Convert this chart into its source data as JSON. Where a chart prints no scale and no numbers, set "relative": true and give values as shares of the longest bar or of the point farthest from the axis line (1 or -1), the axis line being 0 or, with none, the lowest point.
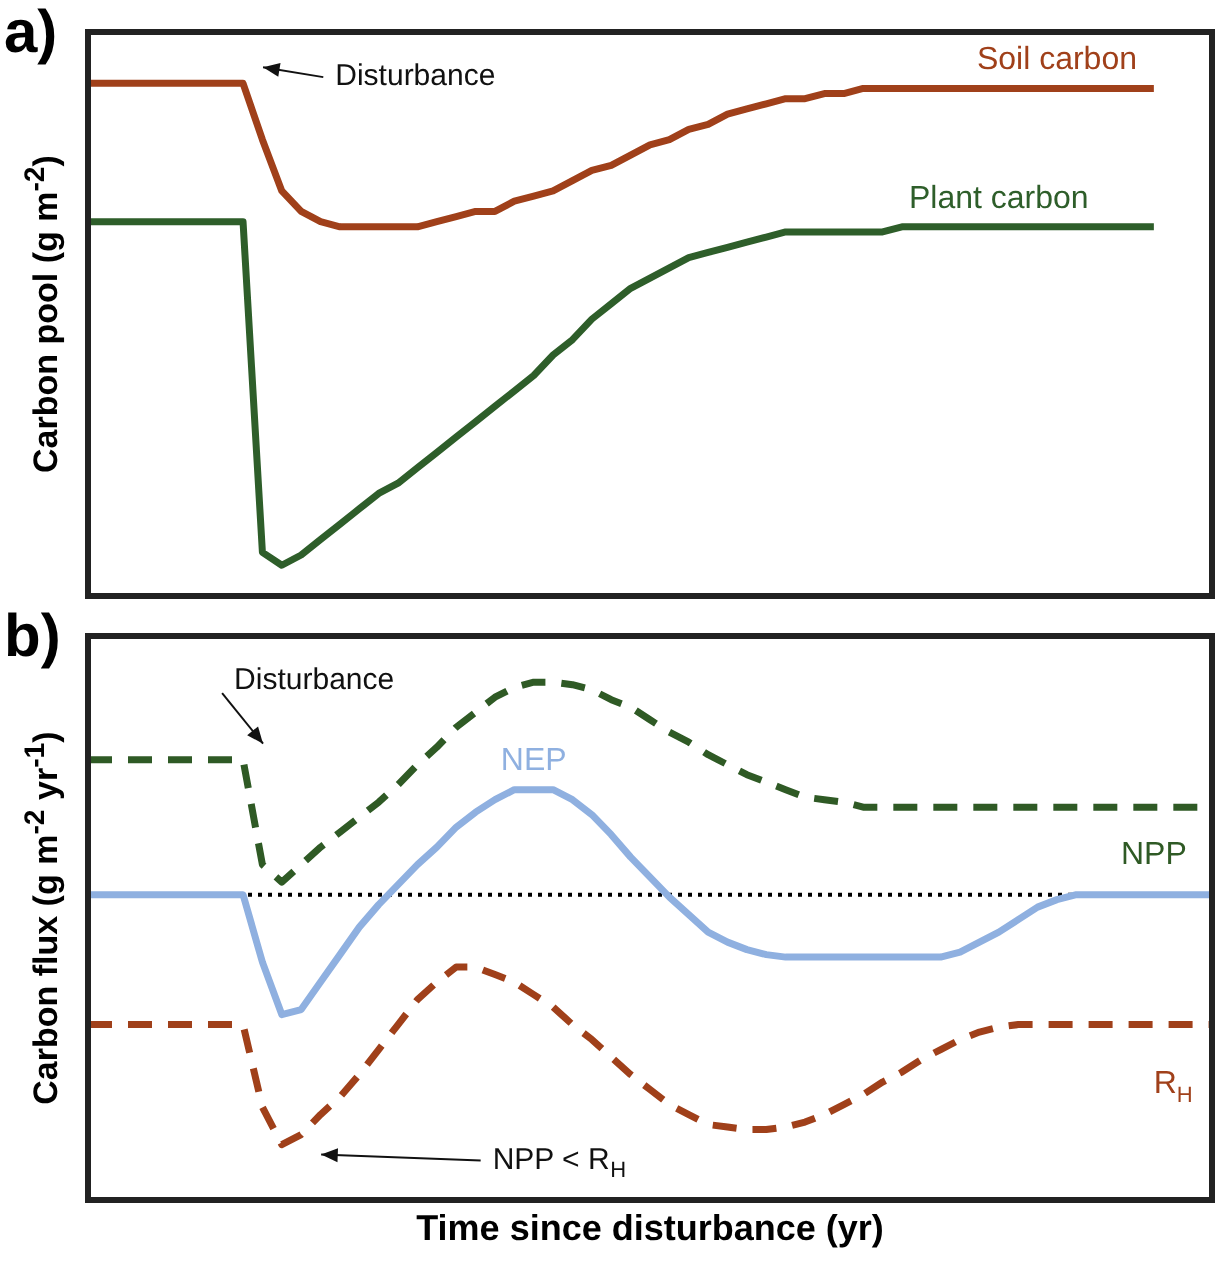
{
  "chart_data": [
    {
      "type": "line",
      "title": "a)",
      "ylabel": "Carbon pool (g m$^{-2}$)",
      "relative": true,
      "legend": false,
      "annotations": [
        "Disturbance"
      ],
      "categories": [
        null,
        null,
        null,
        null,
        null,
        null,
        null,
        null,
        null,
        null,
        null,
        null,
        null,
        null,
        null,
        null,
        null,
        null,
        null,
        null,
        null,
        null,
        null,
        null,
        null,
        null,
        null,
        null,
        null,
        null,
        null,
        null,
        null,
        null,
        null,
        null,
        null,
        null,
        null,
        null,
        null,
        null,
        null,
        null,
        null,
        null,
        null,
        null,
        null,
        null,
        null,
        null,
        null,
        null,
        null,
        null,
        null,
        null,
        null
      ],
      "series": [
        {
          "name": "Soil carbon",
          "color": "#a0401a",
          "line_style": "solid",
          "values": [
            1,
            1,
            1,
            1,
            1,
            1,
            1,
            1,
            1,
            0.89,
            0.79,
            0.75,
            0.73,
            0.72,
            0.72,
            0.72,
            0.72,
            0.72,
            0.73,
            0.74,
            0.75,
            0.75,
            0.77,
            0.78,
            0.79,
            0.81,
            0.83,
            0.84,
            0.86,
            0.88,
            0.89,
            0.91,
            0.92,
            0.94,
            0.95,
            0.96,
            0.97,
            0.97,
            0.98,
            0.98,
            0.99,
            0.99,
            0.99,
            0.99,
            0.99,
            0.99,
            0.99,
            0.99,
            0.99,
            0.99,
            0.99,
            0.99,
            0.99,
            0.99,
            0.99,
            0.99,
            null,
            null,
            null
          ]
        },
        {
          "name": "Plant carbon",
          "color": "#2e5e2a",
          "line_style": "solid",
          "values": [
            0.73,
            0.73,
            0.73,
            0.73,
            0.73,
            0.73,
            0.73,
            0.73,
            0.73,
            0.085,
            0.06,
            0.08,
            0.11,
            0.14,
            0.17,
            0.2,
            0.22,
            0.25,
            0.28,
            0.31,
            0.34,
            0.37,
            0.4,
            0.43,
            0.47,
            0.5,
            0.54,
            0.57,
            0.6,
            0.62,
            0.64,
            0.66,
            0.67,
            0.68,
            0.69,
            0.7,
            0.71,
            0.71,
            0.71,
            0.71,
            0.71,
            0.71,
            0.72,
            0.72,
            0.72,
            0.72,
            0.72,
            0.72,
            0.72,
            0.72,
            0.72,
            0.72,
            0.72,
            0.72,
            0.72,
            0.72,
            null,
            null,
            null
          ]
        }
      ]
    },
    {
      "type": "line",
      "title": "b)",
      "ylabel": "Carbon flux (g m$^{-2}$ yr$^{-1}$)",
      "xlabel": "Time since disturbance (yr)",
      "relative": true,
      "legend": false,
      "annotations": [
        "Disturbance",
        "NPP < R$_{H}$"
      ],
      "ref_lines": [
        {
          "axis": "y",
          "value": 0,
          "color": "#000000",
          "line_style": "dotted"
        }
      ],
      "categories": [
        null,
        null,
        null,
        null,
        null,
        null,
        null,
        null,
        null,
        null,
        null,
        null,
        null,
        null,
        null,
        null,
        null,
        null,
        null,
        null,
        null,
        null,
        null,
        null,
        null,
        null,
        null,
        null,
        null,
        null,
        null,
        null,
        null,
        null,
        null,
        null,
        null,
        null,
        null,
        null,
        null,
        null,
        null,
        null,
        null,
        null,
        null,
        null,
        null,
        null,
        null,
        null,
        null,
        null,
        null,
        null,
        null,
        null,
        null
      ],
      "series": [
        {
          "name": "NPP",
          "color": "#2f5a25",
          "line_style": "dashed",
          "values": [
            0.54,
            0.54,
            0.54,
            0.54,
            0.54,
            0.54,
            0.54,
            0.54,
            0.54,
            0.12,
            0.05,
            0.12,
            0.19,
            0.25,
            0.31,
            0.37,
            0.44,
            0.52,
            0.59,
            0.67,
            0.73,
            0.79,
            0.83,
            0.85,
            0.85,
            0.84,
            0.82,
            0.78,
            0.75,
            0.7,
            0.65,
            0.61,
            0.56,
            0.52,
            0.48,
            0.45,
            0.42,
            0.39,
            0.38,
            0.37,
            0.35,
            0.35,
            0.35,
            0.35,
            0.35,
            0.35,
            0.35,
            0.35,
            0.35,
            0.35,
            0.35,
            0.35,
            0.35,
            0.35,
            0.35,
            0.35,
            0.35,
            0.35,
            0.35
          ]
        },
        {
          "name": "NEP",
          "color": "#8fb0e0",
          "line_style": "solid",
          "values": [
            0,
            0,
            0,
            0,
            0,
            0,
            0,
            0,
            0,
            -0.27,
            -0.48,
            -0.46,
            -0.35,
            -0.24,
            -0.13,
            -0.04,
            0.04,
            0.12,
            0.19,
            0.27,
            0.33,
            0.38,
            0.42,
            0.42,
            0.42,
            0.38,
            0.32,
            0.24,
            0.15,
            0.07,
            -0.01,
            -0.08,
            -0.15,
            -0.19,
            -0.22,
            -0.24,
            -0.25,
            -0.25,
            -0.25,
            -0.25,
            -0.25,
            -0.25,
            -0.25,
            -0.25,
            -0.25,
            -0.23,
            -0.19,
            -0.15,
            -0.1,
            -0.05,
            -0.02,
            0,
            0,
            0,
            0,
            0,
            0,
            0,
            0
          ]
        },
        {
          "name": "R$_{H}$",
          "color": "#a0401a",
          "line_style": "dashed",
          "values": [
            -0.52,
            -0.52,
            -0.52,
            -0.52,
            -0.52,
            -0.52,
            -0.52,
            -0.52,
            -0.52,
            -0.85,
            -1,
            -0.96,
            -0.88,
            -0.81,
            -0.72,
            -0.62,
            -0.52,
            -0.42,
            -0.35,
            -0.29,
            -0.29,
            -0.32,
            -0.35,
            -0.4,
            -0.45,
            -0.52,
            -0.58,
            -0.65,
            -0.72,
            -0.78,
            -0.84,
            -0.88,
            -0.92,
            -0.93,
            -0.94,
            -0.94,
            -0.93,
            -0.91,
            -0.88,
            -0.84,
            -0.8,
            -0.75,
            -0.71,
            -0.66,
            -0.62,
            -0.58,
            -0.55,
            -0.53,
            -0.52,
            -0.52,
            -0.52,
            -0.52,
            -0.52,
            -0.52,
            -0.52,
            -0.52,
            -0.52,
            -0.52,
            -0.52
          ]
        }
      ]
    }
  ]
}
